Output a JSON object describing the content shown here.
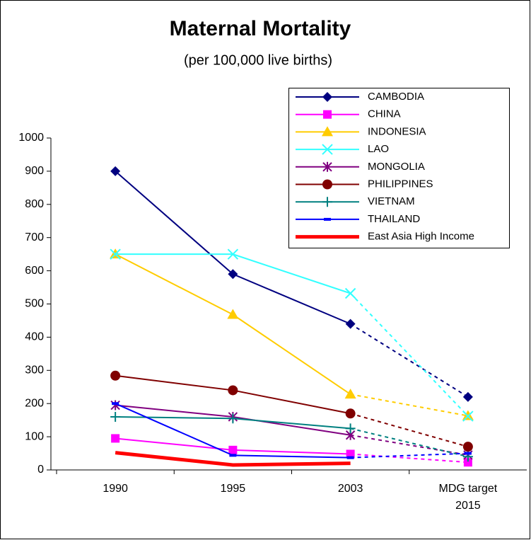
{
  "chart_data": {
    "type": "line",
    "title": "Maternal Mortality",
    "subtitle": "(per 100,000 live births)",
    "categories": [
      "1990",
      "1995",
      "2003",
      "MDG target 2015"
    ],
    "ylim": [
      0,
      1000
    ],
    "yticks": [
      0,
      100,
      200,
      300,
      400,
      500,
      600,
      700,
      800,
      900,
      1000
    ],
    "grid": false,
    "legend": "upper right",
    "last_segment_dashed": true,
    "series": [
      {
        "name": "CAMBODIA",
        "color": "#000080",
        "marker": "diamond",
        "values": [
          900,
          590,
          440,
          220
        ]
      },
      {
        "name": "CHINA",
        "color": "#ff00ff",
        "marker": "square",
        "values": [
          95,
          60,
          48,
          23
        ]
      },
      {
        "name": "INDONESIA",
        "color": "#ffcc00",
        "marker": "triangle",
        "values": [
          650,
          468,
          228,
          163
        ]
      },
      {
        "name": "LAO",
        "color": "#33ffff",
        "marker": "x",
        "values": [
          650,
          650,
          532,
          162
        ]
      },
      {
        "name": "MONGOLIA",
        "color": "#800080",
        "marker": "asterisk",
        "values": [
          195,
          160,
          105,
          45
        ]
      },
      {
        "name": "PHILIPPINES",
        "color": "#800000",
        "marker": "circle",
        "values": [
          284,
          240,
          170,
          70
        ]
      },
      {
        "name": "VIETNAM",
        "color": "#008080",
        "marker": "plus",
        "values": [
          160,
          155,
          125,
          40
        ]
      },
      {
        "name": "THAILAND",
        "color": "#0000ff",
        "marker": "dash",
        "values": [
          200,
          44,
          37,
          50
        ]
      },
      {
        "name": "East Asia High Income",
        "color": "#ff0000",
        "marker": "none",
        "width": 5,
        "values": [
          52,
          15,
          20,
          null
        ]
      }
    ]
  }
}
